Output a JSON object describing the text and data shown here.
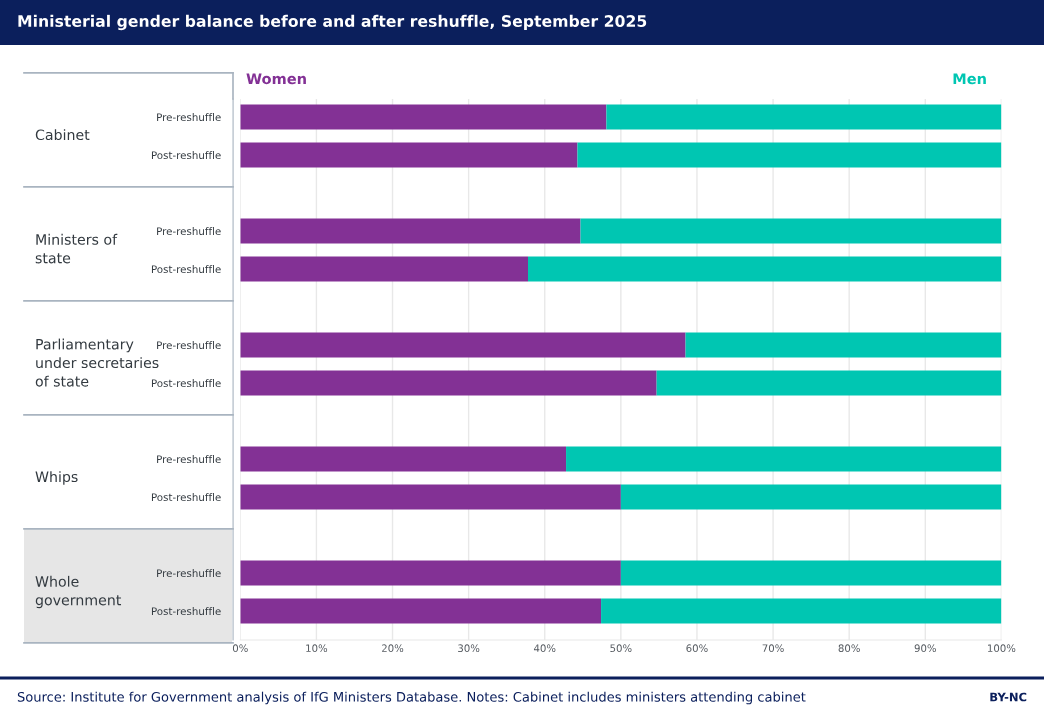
{
  "chart_data": {
    "type": "bar",
    "orientation": "horizontal",
    "stacked": true,
    "title": "Ministerial gender balance before and after reshuffle, September 2025",
    "categories": [
      "Pre-reshuffle",
      "Post-reshuffle",
      "Pre-reshuffle",
      "Post-reshuffle",
      "Pre-reshuffle",
      "Post-reshuffle",
      "Pre-reshuffle",
      "Post-reshuffle",
      "Pre-reshuffle",
      "Post-reshuffle"
    ],
    "series": [
      {
        "name": "Women",
        "color": "#833195",
        "values": [
          48.1,
          44.3,
          44.7,
          37.8,
          58.5,
          54.7,
          42.8,
          50,
          50,
          47.4
        ]
      },
      {
        "name": "Men",
        "color": "#00c6b2",
        "values": [
          51.9,
          55.7,
          55.3,
          62.2,
          41.5,
          45.3,
          57.2,
          50,
          50,
          52.6
        ]
      }
    ],
    "xlim": [
      0,
      100
    ],
    "xticks": [
      {
        "value": 0,
        "label": "0%"
      },
      {
        "value": 10,
        "label": "10%"
      },
      {
        "value": 20,
        "label": "20%"
      },
      {
        "value": 30,
        "label": "30%"
      },
      {
        "value": 40,
        "label": "40%"
      },
      {
        "value": 50,
        "label": "50%"
      },
      {
        "value": 60,
        "label": "60%"
      },
      {
        "value": 70,
        "label": "70%"
      },
      {
        "value": 80,
        "label": "80%"
      },
      {
        "value": 90,
        "label": "90%"
      },
      {
        "value": 100,
        "label": "100%"
      }
    ],
    "grid": "x",
    "annotations": [
      "Cabinet",
      "Ministers of\nstate",
      "Parliamentary\nunder secretaries\nof state",
      "Whips",
      "Whole\ngovernment",
      "Source: Institute for Government analysis of IfG Ministers Database. Notes: Cabinet includes ministers attending cabinet",
      "BY-NC"
    ]
  }
}
